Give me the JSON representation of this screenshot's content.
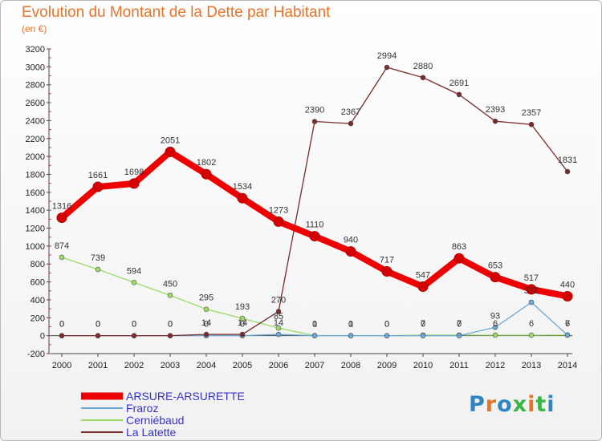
{
  "header": {
    "title": "Evolution du Montant de la Dette par Habitant",
    "subtitle": "(en €)"
  },
  "logo": {
    "text": "Proxiti",
    "colors": [
      "#2e86c1",
      "#e8742a",
      "#2e86c1",
      "#3bb54a",
      "#e8742a",
      "#3bb54a",
      "#2e86c1"
    ]
  },
  "chart_data": {
    "type": "line",
    "title": "Evolution du Montant de la Dette par Habitant",
    "ylabel": "(en €)",
    "xlabel": "",
    "x": [
      2000,
      2001,
      2002,
      2003,
      2004,
      2005,
      2006,
      2007,
      2008,
      2009,
      2010,
      2011,
      2012,
      2013,
      2014
    ],
    "ylim": [
      -200,
      3200
    ],
    "yticks": [
      -200,
      0,
      200,
      400,
      600,
      800,
      1000,
      1200,
      1400,
      1600,
      1800,
      2000,
      2200,
      2400,
      2600,
      2800,
      3000,
      3200
    ],
    "grid": false,
    "legend": "bottom-left",
    "series": [
      {
        "name": "ARSURE-ARSURETTE",
        "color": "#ee0000",
        "values": [
          1316,
          1661,
          1698,
          2051,
          1802,
          1534,
          1273,
          1110,
          940,
          717,
          547,
          863,
          653,
          517,
          440
        ]
      },
      {
        "name": "Fraroz",
        "color": "#6aa8d8",
        "values": [
          0,
          0,
          0,
          0,
          0,
          0,
          14,
          0,
          0,
          0,
          0,
          0,
          93,
          372,
          6
        ]
      },
      {
        "name": "Cerniébaud",
        "color": "#99dd66",
        "values": [
          874,
          739,
          594,
          450,
          295,
          193,
          85,
          1,
          1,
          0,
          7,
          7,
          6,
          6,
          7
        ]
      },
      {
        "name": "La Latette",
        "color": "#7a2a2a",
        "values": [
          0,
          0,
          0,
          0,
          14,
          14,
          270,
          2390,
          2367,
          2994,
          2880,
          2691,
          2393,
          2357,
          1831
        ]
      }
    ]
  }
}
